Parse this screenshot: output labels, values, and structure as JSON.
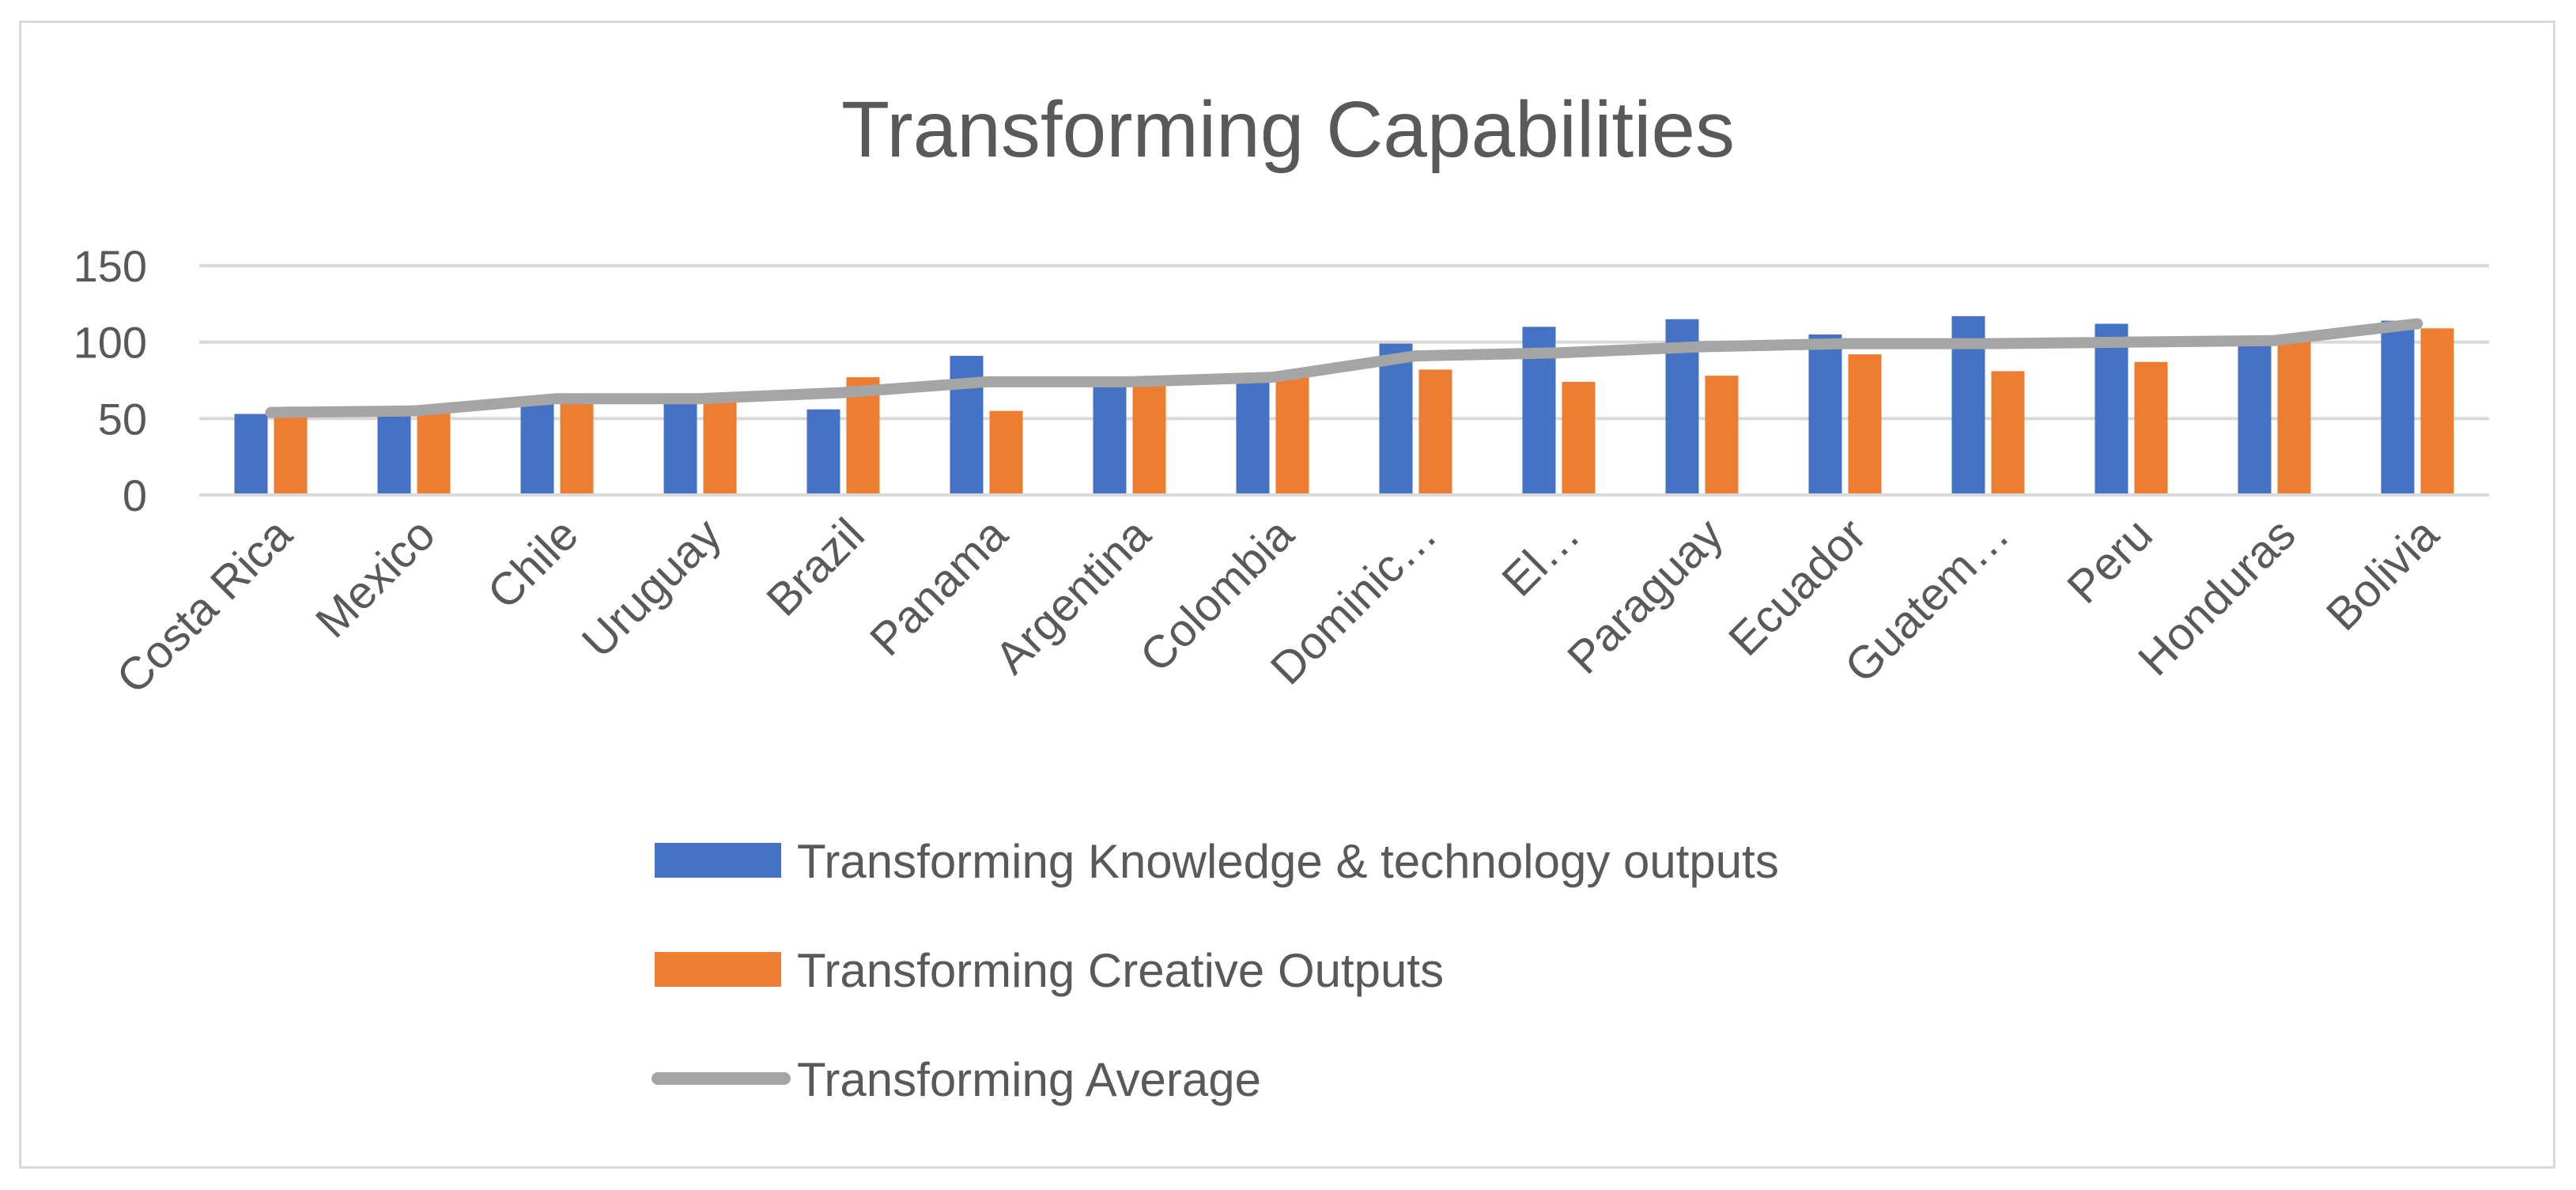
{
  "chart_data": {
    "type": "bar+line",
    "title": "Transforming Capabilities",
    "xlabel": "",
    "ylabel": "",
    "ylim": [
      0,
      150
    ],
    "yticks": [
      0,
      50,
      100,
      150
    ],
    "grid": true,
    "legend_position": "bottom",
    "categories": [
      "Costa Rica",
      "Mexico",
      "Chile",
      "Uruguay",
      "Brazil",
      "Panama",
      "Argentina",
      "Colombia",
      "Dominic…",
      "El…",
      "Paraguay",
      "Ecuador",
      "Guatem…",
      "Peru",
      "Honduras",
      "Bolivia"
    ],
    "series": [
      {
        "name": "Transforming Knowledge & technology outputs",
        "type": "bar",
        "color": "#4472c4",
        "values": [
          53,
          52,
          62,
          62,
          56,
          91,
          73,
          76,
          99,
          110,
          115,
          105,
          117,
          112,
          101,
          114
        ]
      },
      {
        "name": "Transforming Creative Outputs",
        "type": "bar",
        "color": "#ed7d31",
        "values": [
          54,
          55,
          63,
          62,
          77,
          55,
          73,
          77,
          82,
          74,
          78,
          92,
          81,
          87,
          101,
          109
        ]
      },
      {
        "name": "Transforming Average",
        "type": "line",
        "color": "#a5a5a5",
        "values": [
          54,
          55,
          63,
          63,
          67,
          74,
          74,
          77,
          91,
          93,
          97,
          99,
          99,
          100,
          101,
          112
        ]
      }
    ]
  }
}
